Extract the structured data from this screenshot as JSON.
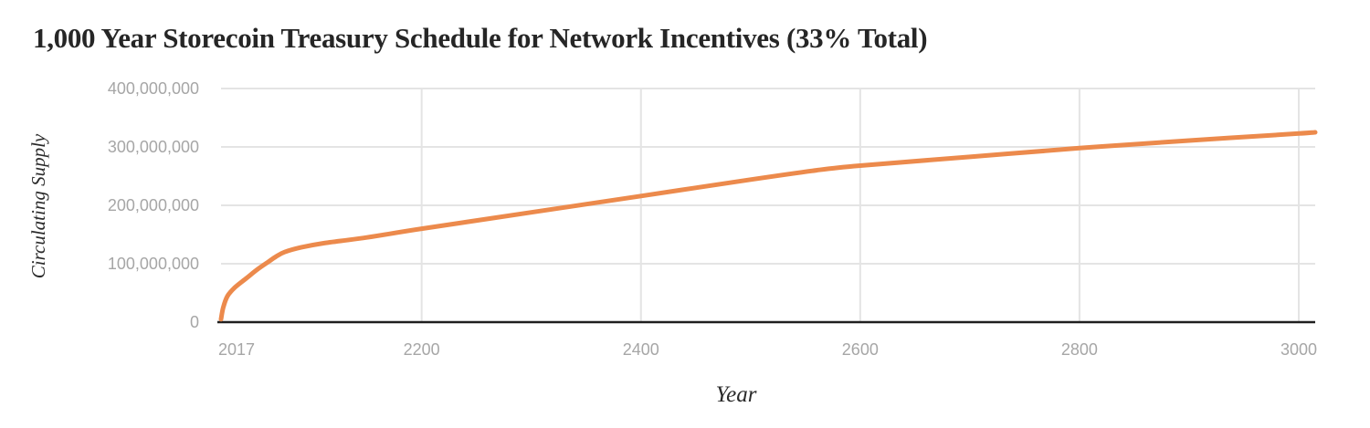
{
  "chart_data": {
    "type": "line",
    "title": "1,000 Year Storecoin Treasury Schedule for Network Incentives (33% Total)",
    "xlabel": "Year",
    "ylabel": "Circulating Supply",
    "xlim": [
      2017,
      3015
    ],
    "ylim": [
      0,
      400000000
    ],
    "x_ticks": [
      {
        "value": 2017,
        "label": "2017"
      },
      {
        "value": 2200,
        "label": "2200"
      },
      {
        "value": 2400,
        "label": "2400"
      },
      {
        "value": 2600,
        "label": "2600"
      },
      {
        "value": 2800,
        "label": "2800"
      },
      {
        "value": 3000,
        "label": "3000"
      }
    ],
    "x_gridlines": [
      2200,
      2400,
      2600,
      2800,
      3000
    ],
    "y_ticks": [
      {
        "value": 0,
        "label": "0"
      },
      {
        "value": 100000000,
        "label": "100,000,000"
      },
      {
        "value": 200000000,
        "label": "200,000,000"
      },
      {
        "value": 300000000,
        "label": "300,000,000"
      },
      {
        "value": 400000000,
        "label": "400,000,000"
      }
    ],
    "grid": true,
    "legend": "none",
    "line_color": "#ec8a4c",
    "series": [
      {
        "x": [
          2017,
          2019,
          2023,
          2030,
          2040,
          2050,
          2060,
          2067,
          2075,
          2090,
          2110,
          2150,
          2200,
          2300,
          2400,
          2500,
          2560,
          2600,
          2700,
          2800,
          2900,
          3000,
          3015
        ],
        "y": [
          5000000,
          25000000,
          45000000,
          60000000,
          75000000,
          90000000,
          103000000,
          112000000,
          120000000,
          128000000,
          135000000,
          145000000,
          160000000,
          188000000,
          216000000,
          244000000,
          260000000,
          268000000,
          283000000,
          298000000,
          311000000,
          323000000,
          325000000
        ]
      }
    ]
  }
}
